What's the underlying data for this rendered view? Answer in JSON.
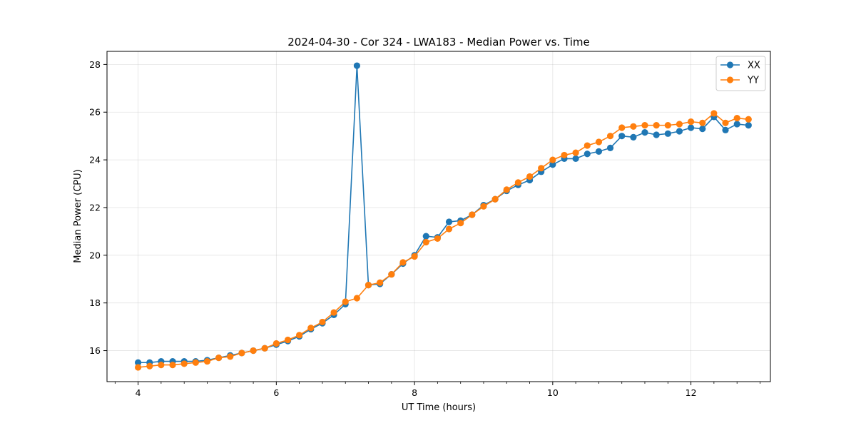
{
  "chart_data": {
    "type": "line",
    "title": "2024-04-30 - Cor 324 - LWA183 - Median Power vs. Time",
    "xlabel": "UT Time (hours)",
    "ylabel": "Median Power (CPU)",
    "xlim": [
      3.55,
      13.15
    ],
    "ylim": [
      14.7,
      28.55
    ],
    "xticks": [
      4,
      6,
      8,
      10,
      12
    ],
    "xticks_minor": [
      3.667,
      4.333,
      4.667,
      5.0,
      5.333,
      5.667,
      6.333,
      6.667,
      7.0,
      7.333,
      7.667,
      8.333,
      8.667,
      9.0,
      9.333,
      9.667,
      10.333,
      10.667,
      11.0,
      11.333,
      11.667,
      12.333,
      12.667,
      13.0
    ],
    "yticks": [
      16,
      18,
      20,
      22,
      24,
      26,
      28
    ],
    "grid": true,
    "legend_position": "top-right",
    "x": [
      4.0,
      4.167,
      4.333,
      4.5,
      4.667,
      4.833,
      5.0,
      5.167,
      5.333,
      5.5,
      5.667,
      5.833,
      6.0,
      6.167,
      6.333,
      6.5,
      6.667,
      6.833,
      7.0,
      7.167,
      7.333,
      7.5,
      7.667,
      7.833,
      8.0,
      8.167,
      8.333,
      8.5,
      8.667,
      8.833,
      9.0,
      9.167,
      9.333,
      9.5,
      9.667,
      9.833,
      10.0,
      10.167,
      10.333,
      10.5,
      10.667,
      10.833,
      11.0,
      11.167,
      11.333,
      11.5,
      11.667,
      11.833,
      12.0,
      12.167,
      12.333,
      12.5,
      12.667,
      12.833
    ],
    "series": [
      {
        "name": "XX",
        "color": "#1f77b4",
        "values": [
          15.5,
          15.5,
          15.55,
          15.55,
          15.55,
          15.55,
          15.6,
          15.7,
          15.8,
          15.9,
          16.0,
          16.1,
          16.25,
          16.4,
          16.6,
          16.9,
          17.15,
          17.5,
          17.95,
          27.95,
          18.75,
          18.8,
          19.2,
          19.65,
          20.0,
          20.8,
          20.75,
          21.4,
          21.45,
          21.7,
          22.1,
          22.35,
          22.7,
          22.95,
          23.15,
          23.5,
          23.8,
          24.05,
          24.05,
          24.25,
          24.35,
          24.5,
          25.0,
          24.95,
          25.15,
          25.05,
          25.1,
          25.2,
          25.35,
          25.3,
          25.8,
          25.25,
          25.5,
          25.45
        ]
      },
      {
        "name": "YY",
        "color": "#ff7f0e",
        "values": [
          15.3,
          15.35,
          15.4,
          15.4,
          15.45,
          15.5,
          15.55,
          15.7,
          15.75,
          15.9,
          16.0,
          16.1,
          16.3,
          16.45,
          16.65,
          16.95,
          17.2,
          17.6,
          18.05,
          18.2,
          18.75,
          18.85,
          19.2,
          19.7,
          19.95,
          20.55,
          20.7,
          21.1,
          21.35,
          21.7,
          22.05,
          22.35,
          22.75,
          23.05,
          23.3,
          23.65,
          24.0,
          24.2,
          24.3,
          24.6,
          24.75,
          25.0,
          25.35,
          25.4,
          25.45,
          25.45,
          25.45,
          25.5,
          25.6,
          25.55,
          25.95,
          25.55,
          25.75,
          25.7
        ]
      }
    ]
  }
}
